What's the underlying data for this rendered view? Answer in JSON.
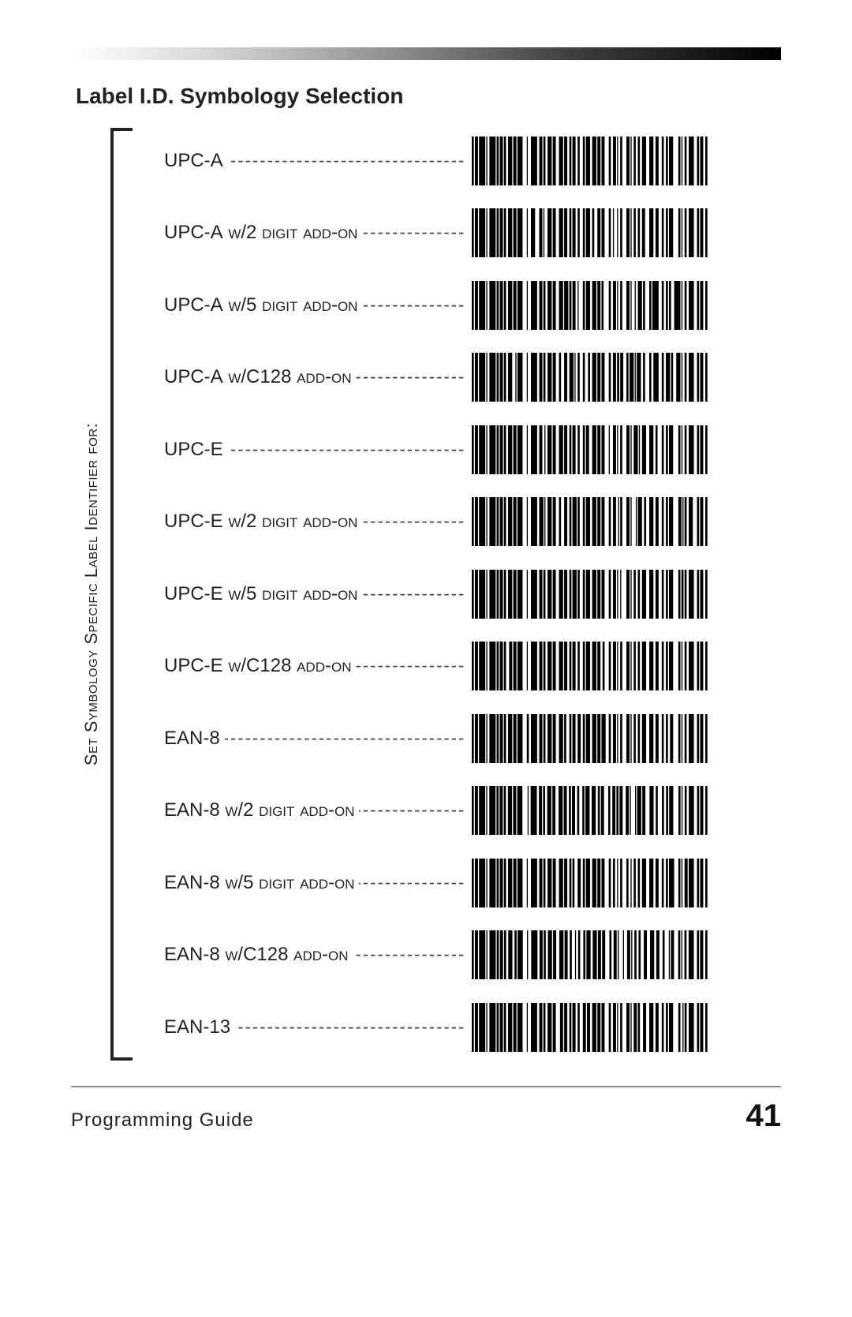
{
  "header": {
    "section_title": "Label I.D. Symbology Selection"
  },
  "sidebar": {
    "vertical_label": "Set Symbology Specific Label Identifier for:"
  },
  "rows": [
    {
      "label_base": "UPC-A",
      "label_suffix": ""
    },
    {
      "label_base": "UPC-A",
      "label_suffix": " w/2 digit add-on"
    },
    {
      "label_base": "UPC-A",
      "label_suffix": " w/5 digit add-on"
    },
    {
      "label_base": "UPC-A",
      "label_suffix": " w/C128 add-on"
    },
    {
      "label_base": "UPC-E",
      "label_suffix": ""
    },
    {
      "label_base": "UPC-E",
      "label_suffix": " w/2 digit add-on"
    },
    {
      "label_base": "UPC-E",
      "label_suffix": " w/5 digit add-on"
    },
    {
      "label_base": "UPC-E",
      "label_suffix": " w/C128 add-on"
    },
    {
      "label_base": "EAN-8",
      "label_suffix": ""
    },
    {
      "label_base": "EAN-8",
      "label_suffix": " w/2 digit add-on"
    },
    {
      "label_base": "EAN-8",
      "label_suffix": " w/5 digit add-on"
    },
    {
      "label_base": "EAN-8",
      "label_suffix": " w/C128 add-on"
    },
    {
      "label_base": "EAN-13",
      "label_suffix": ""
    }
  ],
  "barcode_style": {
    "fill": "#000000",
    "height": 62,
    "quiet_zone": 2
  },
  "barcodes": [
    [
      2,
      1,
      3,
      1,
      6,
      1,
      1,
      2,
      6,
      1,
      2,
      1,
      3,
      1,
      2,
      2,
      4,
      1,
      3,
      1,
      5,
      4,
      1,
      3,
      6,
      2,
      3,
      1,
      2,
      2,
      4,
      1,
      3,
      3,
      4,
      1,
      3,
      2,
      2,
      1,
      3,
      2,
      2,
      3,
      2,
      1,
      4,
      2,
      4,
      1,
      3,
      1,
      3,
      4,
      2,
      2,
      3,
      1,
      1,
      2,
      2,
      4,
      3,
      1,
      1,
      2,
      2,
      2,
      2,
      2,
      4,
      3,
      4,
      2,
      3,
      3,
      2,
      2,
      2,
      1,
      4,
      5,
      2,
      1,
      1,
      2,
      2,
      2,
      5,
      3,
      2,
      1,
      3,
      2,
      2,
      1
    ],
    [
      2,
      1,
      3,
      1,
      6,
      1,
      1,
      2,
      6,
      1,
      2,
      1,
      3,
      1,
      2,
      2,
      4,
      1,
      3,
      1,
      5,
      4,
      1,
      3,
      4,
      4,
      3,
      1,
      1,
      3,
      4,
      1,
      3,
      3,
      4,
      1,
      3,
      2,
      2,
      1,
      3,
      2,
      2,
      3,
      2,
      1,
      4,
      2,
      2,
      3,
      3,
      1,
      3,
      4,
      2,
      2,
      1,
      3,
      1,
      2,
      2,
      4,
      3,
      1,
      1,
      2,
      2,
      2,
      2,
      2,
      3,
      4,
      4,
      2,
      3,
      3,
      2,
      2,
      2,
      1,
      4,
      5,
      2,
      1,
      1,
      2,
      2,
      2,
      5,
      3,
      2,
      1,
      3,
      2,
      2,
      1
    ],
    [
      2,
      1,
      3,
      1,
      6,
      1,
      1,
      2,
      6,
      1,
      2,
      1,
      3,
      1,
      2,
      2,
      4,
      1,
      3,
      1,
      5,
      4,
      1,
      3,
      6,
      2,
      3,
      1,
      2,
      2,
      4,
      1,
      3,
      3,
      4,
      1,
      4,
      1,
      2,
      1,
      3,
      2,
      1,
      4,
      2,
      1,
      4,
      2,
      4,
      1,
      3,
      1,
      2,
      5,
      2,
      2,
      3,
      1,
      1,
      2,
      2,
      4,
      3,
      1,
      1,
      3,
      1,
      2,
      4,
      1,
      2,
      4,
      2,
      1,
      6,
      3,
      2,
      2,
      2,
      1,
      2,
      3,
      6,
      1,
      1,
      2,
      2,
      2,
      5,
      3,
      2,
      1,
      3,
      2,
      2,
      1
    ],
    [
      2,
      1,
      3,
      1,
      6,
      1,
      1,
      2,
      6,
      1,
      2,
      1,
      3,
      1,
      2,
      2,
      4,
      3,
      1,
      1,
      5,
      4,
      1,
      3,
      6,
      2,
      3,
      1,
      2,
      2,
      4,
      1,
      3,
      3,
      2,
      3,
      3,
      2,
      4,
      1,
      1,
      2,
      2,
      3,
      2,
      3,
      2,
      2,
      4,
      1,
      3,
      1,
      3,
      4,
      2,
      2,
      3,
      1,
      2,
      1,
      3,
      3,
      2,
      1,
      4,
      1,
      1,
      1,
      4,
      2,
      2,
      4,
      2,
      2,
      5,
      3,
      2,
      2,
      4,
      1,
      2,
      3,
      4,
      1,
      1,
      2,
      2,
      2,
      5,
      3,
      2,
      1,
      3,
      2,
      2,
      1
    ],
    [
      2,
      1,
      3,
      1,
      6,
      1,
      1,
      2,
      6,
      1,
      2,
      1,
      3,
      1,
      2,
      2,
      4,
      1,
      3,
      1,
      5,
      4,
      1,
      3,
      6,
      2,
      3,
      2,
      1,
      2,
      4,
      1,
      3,
      3,
      4,
      1,
      3,
      2,
      2,
      1,
      3,
      2,
      2,
      3,
      2,
      1,
      3,
      3,
      4,
      1,
      3,
      1,
      3,
      4,
      1,
      3,
      3,
      1,
      1,
      2,
      2,
      4,
      3,
      1,
      1,
      2,
      4,
      1,
      1,
      2,
      4,
      3,
      4,
      2,
      2,
      4,
      2,
      2,
      2,
      1,
      4,
      5,
      2,
      1,
      1,
      2,
      2,
      2,
      5,
      3,
      2,
      1,
      3,
      2,
      2,
      1
    ],
    [
      2,
      1,
      3,
      1,
      6,
      1,
      1,
      2,
      6,
      1,
      2,
      1,
      3,
      1,
      2,
      2,
      4,
      1,
      3,
      1,
      5,
      4,
      1,
      3,
      6,
      2,
      4,
      1,
      1,
      2,
      4,
      1,
      3,
      3,
      2,
      3,
      3,
      2,
      2,
      1,
      4,
      1,
      2,
      3,
      2,
      1,
      4,
      2,
      4,
      1,
      3,
      1,
      3,
      4,
      2,
      2,
      3,
      2,
      1,
      1,
      2,
      4,
      3,
      1,
      1,
      4,
      1,
      1,
      4,
      2,
      2,
      3,
      4,
      2,
      3,
      3,
      2,
      2,
      2,
      1,
      4,
      5,
      3,
      1,
      1,
      1,
      2,
      2,
      4,
      4,
      2,
      1,
      3,
      2,
      2,
      1
    ],
    [
      2,
      1,
      3,
      1,
      6,
      1,
      1,
      2,
      6,
      1,
      2,
      1,
      3,
      1,
      2,
      2,
      4,
      1,
      3,
      1,
      5,
      4,
      1,
      3,
      6,
      2,
      3,
      1,
      2,
      2,
      4,
      1,
      3,
      3,
      4,
      1,
      3,
      2,
      2,
      1,
      4,
      1,
      2,
      3,
      2,
      1,
      4,
      2,
      4,
      1,
      3,
      1,
      3,
      4,
      2,
      2,
      3,
      1,
      1,
      2,
      1,
      5,
      3,
      1,
      1,
      2,
      2,
      2,
      2,
      2,
      4,
      3,
      4,
      2,
      3,
      3,
      2,
      2,
      2,
      1,
      4,
      5,
      2,
      1,
      2,
      1,
      2,
      2,
      5,
      3,
      2,
      1,
      3,
      2,
      2,
      1
    ],
    [
      2,
      1,
      3,
      1,
      6,
      1,
      1,
      2,
      6,
      1,
      2,
      1,
      3,
      1,
      2,
      3,
      3,
      1,
      3,
      1,
      5,
      4,
      1,
      3,
      6,
      2,
      3,
      1,
      2,
      2,
      4,
      1,
      3,
      3,
      4,
      1,
      3,
      2,
      2,
      1,
      3,
      2,
      2,
      3,
      2,
      1,
      4,
      2,
      4,
      1,
      3,
      2,
      2,
      4,
      2,
      2,
      3,
      1,
      1,
      2,
      2,
      4,
      3,
      1,
      1,
      2,
      2,
      2,
      2,
      2,
      4,
      3,
      4,
      2,
      3,
      3,
      2,
      2,
      2,
      1,
      4,
      5,
      2,
      1,
      1,
      2,
      2,
      2,
      5,
      3,
      2,
      1,
      3,
      2,
      2,
      1
    ],
    [
      2,
      1,
      3,
      1,
      6,
      1,
      1,
      2,
      6,
      1,
      2,
      1,
      3,
      1,
      2,
      2,
      4,
      1,
      3,
      1,
      5,
      4,
      2,
      2,
      6,
      2,
      3,
      1,
      2,
      2,
      4,
      1,
      3,
      3,
      4,
      1,
      2,
      3,
      2,
      1,
      3,
      2,
      3,
      2,
      2,
      1,
      4,
      2,
      4,
      1,
      3,
      1,
      4,
      3,
      2,
      2,
      3,
      1,
      1,
      2,
      2,
      4,
      3,
      1,
      1,
      2,
      2,
      2,
      2,
      2,
      4,
      3,
      4,
      2,
      3,
      3,
      2,
      2,
      2,
      2,
      3,
      5,
      2,
      1,
      1,
      2,
      2,
      2,
      5,
      3,
      2,
      1,
      3,
      2,
      2,
      1
    ],
    [
      2,
      1,
      3,
      1,
      6,
      1,
      1,
      2,
      6,
      1,
      2,
      1,
      3,
      1,
      2,
      2,
      4,
      1,
      3,
      1,
      5,
      5,
      1,
      2,
      6,
      2,
      3,
      1,
      2,
      2,
      4,
      1,
      3,
      3,
      4,
      1,
      3,
      2,
      2,
      1,
      3,
      2,
      2,
      3,
      2,
      1,
      4,
      2,
      4,
      2,
      2,
      1,
      3,
      4,
      2,
      2,
      3,
      1,
      2,
      1,
      3,
      3,
      3,
      1,
      1,
      4,
      1,
      1,
      4,
      1,
      3,
      4,
      4,
      2,
      2,
      4,
      2,
      2,
      2,
      1,
      4,
      5,
      2,
      1,
      1,
      2,
      2,
      2,
      5,
      3,
      2,
      1,
      3,
      2,
      2,
      1
    ],
    [
      2,
      1,
      3,
      1,
      6,
      1,
      1,
      2,
      6,
      1,
      2,
      1,
      3,
      1,
      2,
      2,
      4,
      1,
      3,
      1,
      5,
      4,
      1,
      3,
      6,
      2,
      3,
      1,
      2,
      2,
      4,
      1,
      3,
      3,
      4,
      1,
      3,
      2,
      2,
      1,
      2,
      3,
      3,
      2,
      2,
      1,
      4,
      2,
      4,
      1,
      3,
      1,
      3,
      4,
      2,
      2,
      2,
      2,
      1,
      2,
      2,
      4,
      2,
      2,
      1,
      2,
      2,
      2,
      2,
      2,
      4,
      3,
      4,
      2,
      3,
      3,
      2,
      2,
      2,
      1,
      5,
      4,
      2,
      1,
      1,
      2,
      3,
      1,
      5,
      3,
      2,
      1,
      3,
      2,
      2,
      1
    ],
    [
      2,
      1,
      3,
      1,
      6,
      1,
      1,
      2,
      6,
      1,
      2,
      1,
      3,
      1,
      2,
      2,
      4,
      2,
      2,
      1,
      5,
      4,
      1,
      3,
      6,
      2,
      3,
      1,
      2,
      2,
      4,
      1,
      3,
      3,
      4,
      1,
      3,
      2,
      2,
      3,
      1,
      2,
      2,
      3,
      2,
      1,
      4,
      2,
      4,
      1,
      3,
      1,
      3,
      4,
      2,
      2,
      3,
      1,
      1,
      4,
      1,
      3,
      3,
      1,
      1,
      2,
      2,
      2,
      2,
      3,
      3,
      3,
      4,
      2,
      3,
      3,
      2,
      4,
      1,
      1,
      3,
      4,
      2,
      1,
      1,
      2,
      2,
      2,
      5,
      3,
      2,
      1,
      3,
      2,
      2,
      1
    ],
    [
      2,
      1,
      3,
      1,
      6,
      1,
      1,
      2,
      6,
      1,
      2,
      1,
      3,
      1,
      2,
      2,
      4,
      1,
      3,
      1,
      5,
      4,
      1,
      3,
      6,
      2,
      3,
      1,
      2,
      2,
      4,
      1,
      3,
      4,
      3,
      1,
      3,
      2,
      2,
      1,
      3,
      2,
      2,
      3,
      3,
      1,
      3,
      2,
      4,
      1,
      3,
      1,
      3,
      4,
      2,
      2,
      3,
      1,
      1,
      2,
      2,
      4,
      3,
      1,
      1,
      2,
      3,
      1,
      2,
      3,
      3,
      3,
      4,
      2,
      3,
      3,
      2,
      2,
      2,
      1,
      4,
      5,
      2,
      2,
      1,
      1,
      2,
      2,
      5,
      3,
      2,
      1,
      3,
      2,
      2,
      1
    ]
  ],
  "footer": {
    "left": "Programming Guide",
    "page_number": "41"
  },
  "colors": {
    "text": "#222222",
    "rule": "#888888",
    "barcode": "#000000",
    "background": "#ffffff"
  },
  "typography": {
    "title_fontsize": 28,
    "label_fontsize": 24,
    "vlabel_fontsize": 22,
    "footer_left_fontsize": 24,
    "page_number_fontsize": 40
  }
}
